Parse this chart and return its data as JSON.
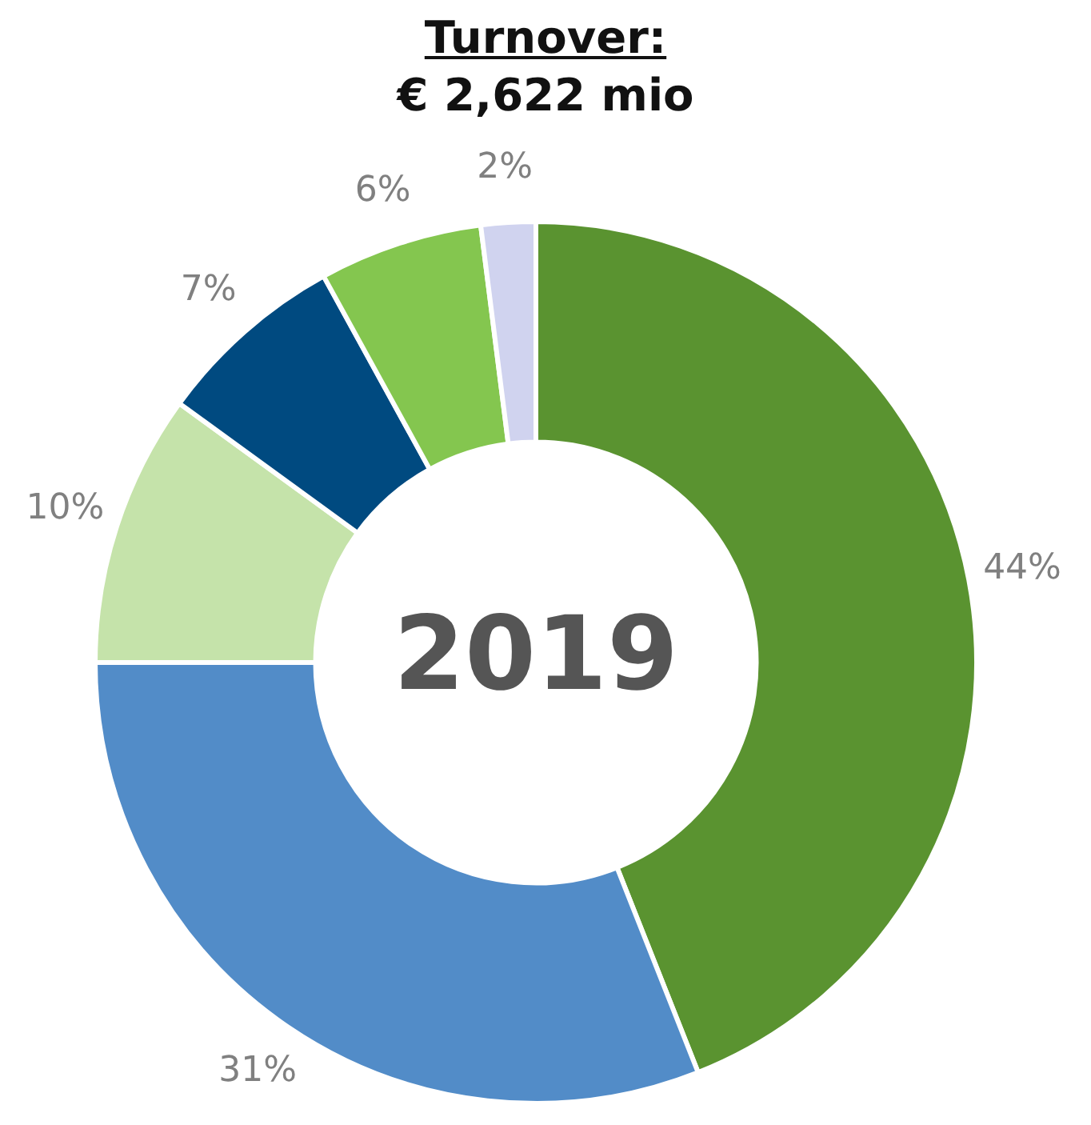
{
  "chart_data": {
    "type": "donut",
    "title": "Turnover:",
    "subtitle": "€ 2,622 mio",
    "categories": [
      null,
      null,
      null,
      null,
      null,
      null
    ],
    "values": [
      44,
      31,
      10,
      7,
      6,
      2
    ],
    "colors": [
      "#5a9330",
      "#528cc8",
      "#c5e3aa",
      "#004a80",
      "#84c64f",
      "#d0d3ef"
    ],
    "value_labels": [
      "44%",
      "31%",
      "10%",
      "7%",
      "6%",
      "2%"
    ],
    "annotations": [
      "2019"
    ]
  }
}
